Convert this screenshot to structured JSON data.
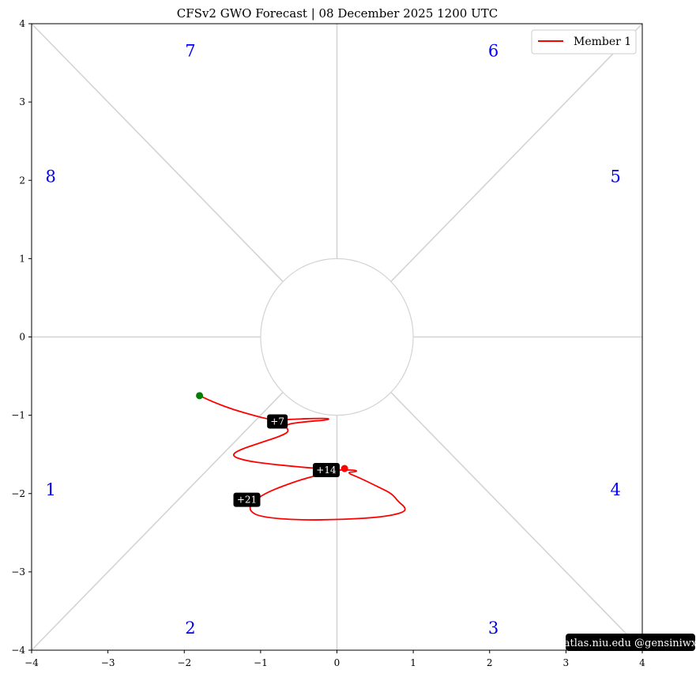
{
  "chart_data": {
    "type": "line",
    "title": "CFSv2 GWO Forecast   |   08  December  2025 1200 UTC",
    "xlim": [
      -4,
      4
    ],
    "ylim": [
      -4,
      4
    ],
    "xticks": [
      -4,
      -3,
      -2,
      -1,
      0,
      1,
      2,
      3,
      4
    ],
    "yticks": [
      -4,
      -3,
      -2,
      -1,
      0,
      1,
      2,
      3,
      4
    ],
    "tick_labels": {
      "x": [
        "−4",
        "−3",
        "−2",
        "−1",
        "0",
        "1",
        "2",
        "3",
        "4"
      ],
      "y": [
        "−4",
        "−3",
        "−2",
        "−1",
        "0",
        "1",
        "2",
        "3",
        "4"
      ]
    },
    "grid": false,
    "legend": {
      "placement": "top-right",
      "entries": [
        "Member 1"
      ]
    },
    "phase_labels": [
      {
        "text": "1",
        "x": -3.75,
        "y": -1.95
      },
      {
        "text": "2",
        "x": -1.92,
        "y": -3.72
      },
      {
        "text": "3",
        "x": 2.05,
        "y": -3.72
      },
      {
        "text": "4",
        "x": 3.65,
        "y": -1.95
      },
      {
        "text": "5",
        "x": 3.65,
        "y": 2.05
      },
      {
        "text": "6",
        "x": 2.05,
        "y": 3.65
      },
      {
        "text": "7",
        "x": -1.92,
        "y": 3.65
      },
      {
        "text": "8",
        "x": -3.75,
        "y": 2.05
      }
    ],
    "series": [
      {
        "name": "Member 1",
        "color": "#ff0000",
        "x": [
          -1.8,
          -1.6,
          -1.35,
          -1.1,
          -0.9,
          -0.75,
          -0.55,
          -0.3,
          -0.1,
          -0.12,
          -0.4,
          -0.7,
          -0.62,
          -0.72,
          -1.0,
          -1.3,
          -1.38,
          -1.2,
          -0.9,
          -0.5,
          -0.1,
          0.1,
          0.25,
          0.26,
          0.12,
          0.3,
          0.55,
          0.72,
          0.8,
          0.9,
          0.88,
          0.6,
          0.1,
          -0.5,
          -1.0,
          -1.15,
          -1.12,
          -0.95,
          -0.7,
          -0.4,
          -0.1,
          0.05
        ],
        "y": [
          -0.75,
          -0.84,
          -0.93,
          -1.0,
          -1.05,
          -1.06,
          -1.05,
          -1.04,
          -1.04,
          -1.06,
          -1.08,
          -1.12,
          -1.2,
          -1.26,
          -1.35,
          -1.45,
          -1.52,
          -1.58,
          -1.62,
          -1.66,
          -1.69,
          -1.7,
          -1.7,
          -1.72,
          -1.73,
          -1.8,
          -1.92,
          -2.0,
          -2.1,
          -2.18,
          -2.24,
          -2.3,
          -2.33,
          -2.34,
          -2.3,
          -2.22,
          -2.12,
          -2.0,
          -1.9,
          -1.8,
          -1.73,
          -1.7
        ]
      }
    ],
    "start_marker": {
      "x": -1.8,
      "y": -0.75,
      "color": "#008000"
    },
    "end_marker": {
      "x": 0.1,
      "y": -1.68,
      "color": "#ff0000"
    },
    "day_labels": [
      {
        "text": "+7",
        "x": -0.78,
        "y": -1.08
      },
      {
        "text": "+14",
        "x": -0.14,
        "y": -1.7
      },
      {
        "text": "+21",
        "x": -1.18,
        "y": -2.08
      }
    ],
    "credit": "atlas.niu.edu  @gensiniwx"
  }
}
